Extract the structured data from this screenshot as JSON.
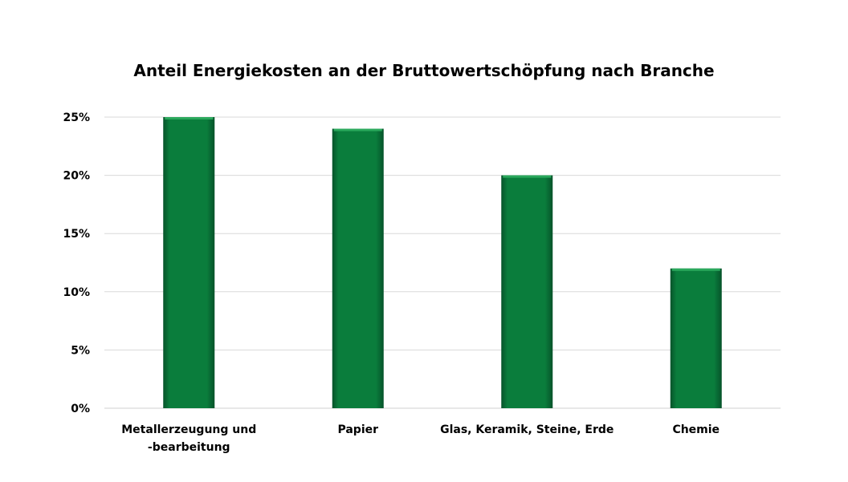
{
  "chart_data": {
    "type": "bar",
    "title": "Anteil Energiekosten an der Bruttowertschöpfung nach Branche",
    "xlabel": "",
    "ylabel": "",
    "categories": [
      [
        "Metallerzeugung und",
        "-bearbeitung"
      ],
      [
        "Papier"
      ],
      [
        "Glas, Keramik, Steine, Erde"
      ],
      [
        "Chemie"
      ]
    ],
    "values": [
      25,
      24,
      20,
      12
    ],
    "ylim": [
      0,
      25
    ],
    "yticks": [
      0,
      5,
      10,
      15,
      20,
      25
    ],
    "ytick_labels": [
      "0%",
      "5%",
      "10%",
      "15%",
      "20%",
      "25%"
    ],
    "grid": true,
    "legend": "none",
    "colors": {
      "bar": "#0a7d3c",
      "bar_dark": "#06532a",
      "bar_light": "#2aa85c",
      "grid": "#d9d9d9"
    }
  }
}
